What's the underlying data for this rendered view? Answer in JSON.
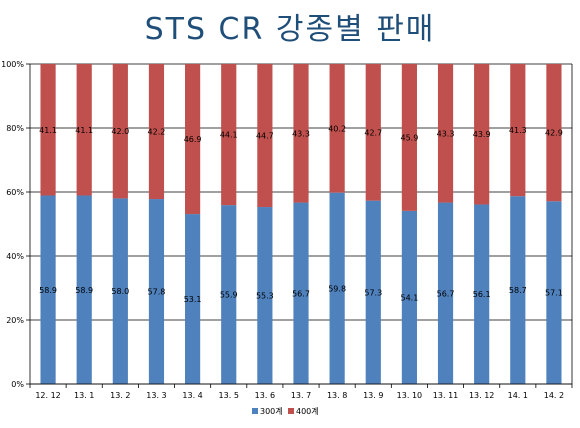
{
  "chart_data": {
    "type": "bar",
    "stacked": "percent",
    "title": "STS CR 강종별 판매",
    "xlabel": "",
    "ylabel": "",
    "ylim": [
      0,
      100
    ],
    "yticks": [
      "0%",
      "20%",
      "40%",
      "60%",
      "80%",
      "100%"
    ],
    "categories": [
      "12. 12",
      "13. 1",
      "13. 2",
      "13. 3",
      "13. 4",
      "13. 5",
      "13. 6",
      "13. 7",
      "13. 8",
      "13. 9",
      "13. 10",
      "13. 11",
      "13. 12",
      "14. 1",
      "14. 2"
    ],
    "series": [
      {
        "name": "300계",
        "color": "#4f81bd",
        "values": [
          58.9,
          58.9,
          58.0,
          57.8,
          53.1,
          55.9,
          55.3,
          56.7,
          59.8,
          57.3,
          54.1,
          56.7,
          56.1,
          58.7,
          57.1
        ],
        "labels": [
          "58.9",
          "58.9",
          "58.0",
          "57.8",
          "53.1",
          "55.9",
          "55.3",
          "56.7",
          "59.8",
          "57.3",
          "54.1",
          "56.7",
          "56.1",
          "58.7",
          "57.1"
        ]
      },
      {
        "name": "400계",
        "color": "#c0504d",
        "values": [
          41.1,
          41.1,
          42.0,
          42.2,
          46.9,
          44.1,
          44.7,
          43.3,
          40.2,
          42.7,
          45.9,
          43.3,
          43.9,
          41.3,
          42.9
        ],
        "labels": [
          "41.1",
          "41.1",
          "42.0",
          "42.2",
          "46.9",
          "44.1",
          "44.7",
          "43.3",
          "40.2",
          "42.7",
          "45.9",
          "43.3",
          "43.9",
          "41.3",
          "42.9"
        ]
      }
    ],
    "grid": true,
    "legend": "bottom"
  }
}
